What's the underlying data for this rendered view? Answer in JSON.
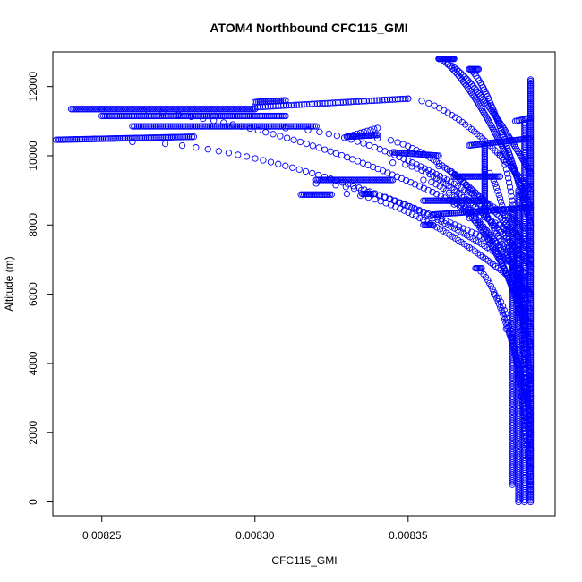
{
  "chart_data": {
    "type": "scatter",
    "title": "ATOM4 Northbound CFC115_GMI",
    "xlabel": "CFC115_GMI",
    "ylabel": "Altitude (m)",
    "xlim": [
      0.008234,
      0.008398
    ],
    "ylim": [
      -400,
      13000
    ],
    "xticks": [
      0.00825,
      0.0083,
      0.00835
    ],
    "xtick_labels": [
      "0.00825",
      "0.00830",
      "0.00835"
    ],
    "yticks": [
      0,
      2000,
      4000,
      6000,
      8000,
      10000,
      12000
    ],
    "ytick_labels": [
      "0",
      "2000",
      "4000",
      "6000",
      "8000",
      "10000",
      "12000"
    ],
    "marker": "open-circle",
    "color": "#0000ff",
    "segments": [
      {
        "x0": 0.00839,
        "y0": 0,
        "x1": 0.00839,
        "y1": 12200,
        "n": 260
      },
      {
        "x0": 0.008388,
        "y0": 0,
        "x1": 0.008388,
        "y1": 11000,
        "n": 200
      },
      {
        "x0": 0.008386,
        "y0": 0,
        "x1": 0.008386,
        "y1": 9000,
        "n": 160
      },
      {
        "x0": 0.008384,
        "y0": 500,
        "x1": 0.008384,
        "y1": 8500,
        "n": 140
      },
      {
        "x0": 0.00824,
        "y0": 11350,
        "x1": 0.0083,
        "y1": 11350,
        "n": 120
      },
      {
        "x0": 0.0083,
        "y0": 11400,
        "x1": 0.00835,
        "y1": 11650,
        "n": 60
      },
      {
        "x0": 0.00826,
        "y0": 10850,
        "x1": 0.00832,
        "y1": 10850,
        "n": 110
      },
      {
        "x0": 0.00825,
        "y0": 11150,
        "x1": 0.00831,
        "y1": 11150,
        "n": 110
      },
      {
        "x0": 0.00823,
        "y0": 10450,
        "x1": 0.00828,
        "y1": 10550,
        "n": 90
      },
      {
        "x0": 0.0083,
        "y0": 11550,
        "x1": 0.00831,
        "y1": 11600,
        "n": 20
      },
      {
        "x0": 0.00833,
        "y0": 10550,
        "x1": 0.00834,
        "y1": 10600,
        "n": 25
      },
      {
        "x0": 0.00834,
        "y0": 10800,
        "x1": 0.00833,
        "y1": 10550,
        "n": 10
      },
      {
        "x0": 0.00832,
        "y0": 9300,
        "x1": 0.008345,
        "y1": 9300,
        "n": 50
      },
      {
        "x0": 0.008315,
        "y0": 8880,
        "x1": 0.008325,
        "y1": 8880,
        "n": 20
      },
      {
        "x0": 0.008335,
        "y0": 8900,
        "x1": 0.008338,
        "y1": 8900,
        "n": 8
      },
      {
        "x0": 0.008355,
        "y0": 8000,
        "x1": 0.008358,
        "y1": 8000,
        "n": 8
      },
      {
        "x0": 0.008345,
        "y0": 10100,
        "x1": 0.00836,
        "y1": 10000,
        "n": 30
      },
      {
        "x0": 0.008355,
        "y0": 8700,
        "x1": 0.008375,
        "y1": 8700,
        "n": 40
      },
      {
        "x0": 0.008365,
        "y0": 9400,
        "x1": 0.00838,
        "y1": 9400,
        "n": 30
      },
      {
        "x0": 0.008358,
        "y0": 8300,
        "x1": 0.00839,
        "y1": 8500,
        "n": 60
      },
      {
        "x0": 0.00837,
        "y0": 10300,
        "x1": 0.00839,
        "y1": 10500,
        "n": 40
      },
      {
        "x0": 0.008375,
        "y0": 8400,
        "x1": 0.008375,
        "y1": 10300,
        "n": 40
      },
      {
        "x0": 0.008385,
        "y0": 11000,
        "x1": 0.00839,
        "y1": 11100,
        "n": 10
      },
      {
        "x0": 0.00836,
        "y0": 12800,
        "x1": 0.008365,
        "y1": 12800,
        "n": 20
      },
      {
        "x0": 0.00837,
        "y0": 12500,
        "x1": 0.008373,
        "y1": 12500,
        "n": 10
      },
      {
        "x0": 0.008372,
        "y0": 6750,
        "x1": 0.008374,
        "y1": 6750,
        "n": 6
      }
    ],
    "curves": [
      {
        "x0": 0.00825,
        "y0": 11350,
        "x1": 0.00839,
        "y1": 7500,
        "n": 70,
        "p": 0.55
      },
      {
        "x0": 0.00826,
        "y0": 10400,
        "x1": 0.00839,
        "y1": 7000,
        "n": 65,
        "p": 0.6
      },
      {
        "x0": 0.00831,
        "y0": 10800,
        "x1": 0.00839,
        "y1": 7800,
        "n": 55,
        "p": 0.6
      },
      {
        "x0": 0.00832,
        "y0": 9200,
        "x1": 0.00839,
        "y1": 6500,
        "n": 55,
        "p": 0.6
      },
      {
        "x0": 0.00833,
        "y0": 8900,
        "x1": 0.00839,
        "y1": 6000,
        "n": 55,
        "p": 0.65
      },
      {
        "x0": 0.00835,
        "y0": 11650,
        "x1": 0.00839,
        "y1": 9000,
        "n": 40,
        "p": 0.6
      },
      {
        "x0": 0.00834,
        "y0": 10500,
        "x1": 0.00839,
        "y1": 7200,
        "n": 60,
        "p": 0.6
      },
      {
        "x0": 0.008345,
        "y0": 9800,
        "x1": 0.00839,
        "y1": 6800,
        "n": 55,
        "p": 0.6
      },
      {
        "x0": 0.008355,
        "y0": 9300,
        "x1": 0.00839,
        "y1": 6000,
        "n": 55,
        "p": 0.65
      },
      {
        "x0": 0.00836,
        "y0": 9700,
        "x1": 0.00839,
        "y1": 5500,
        "n": 55,
        "p": 0.6
      },
      {
        "x0": 0.008365,
        "y0": 8600,
        "x1": 0.00839,
        "y1": 5000,
        "n": 55,
        "p": 0.65
      },
      {
        "x0": 0.00837,
        "y0": 8200,
        "x1": 0.00839,
        "y1": 4500,
        "n": 55,
        "p": 0.6
      },
      {
        "x0": 0.008375,
        "y0": 9600,
        "x1": 0.00839,
        "y1": 3500,
        "n": 60,
        "p": 0.55
      },
      {
        "x0": 0.00838,
        "y0": 10000,
        "x1": 0.00839,
        "y1": 3000,
        "n": 55,
        "p": 0.55
      },
      {
        "x0": 0.00838,
        "y0": 8000,
        "x1": 0.00839,
        "y1": 2000,
        "n": 50,
        "p": 0.55
      },
      {
        "x0": 0.008385,
        "y0": 7000,
        "x1": 0.00839,
        "y1": 1000,
        "n": 45,
        "p": 0.55
      },
      {
        "x0": 0.00836,
        "y0": 12800,
        "x1": 0.00839,
        "y1": 8500,
        "n": 80,
        "p": 0.7
      },
      {
        "x0": 0.00837,
        "y0": 12500,
        "x1": 0.00839,
        "y1": 8000,
        "n": 70,
        "p": 0.7
      },
      {
        "x0": 0.008363,
        "y0": 12650,
        "x1": 0.00839,
        "y1": 9500,
        "n": 60,
        "p": 0.75
      },
      {
        "x0": 0.008372,
        "y0": 6750,
        "x1": 0.00839,
        "y1": 2500,
        "n": 50,
        "p": 0.6
      },
      {
        "x0": 0.008378,
        "y0": 6000,
        "x1": 0.00839,
        "y1": 1500,
        "n": 40,
        "p": 0.55
      },
      {
        "x0": 0.008382,
        "y0": 5000,
        "x1": 0.00839,
        "y1": 500,
        "n": 40,
        "p": 0.55
      }
    ]
  }
}
